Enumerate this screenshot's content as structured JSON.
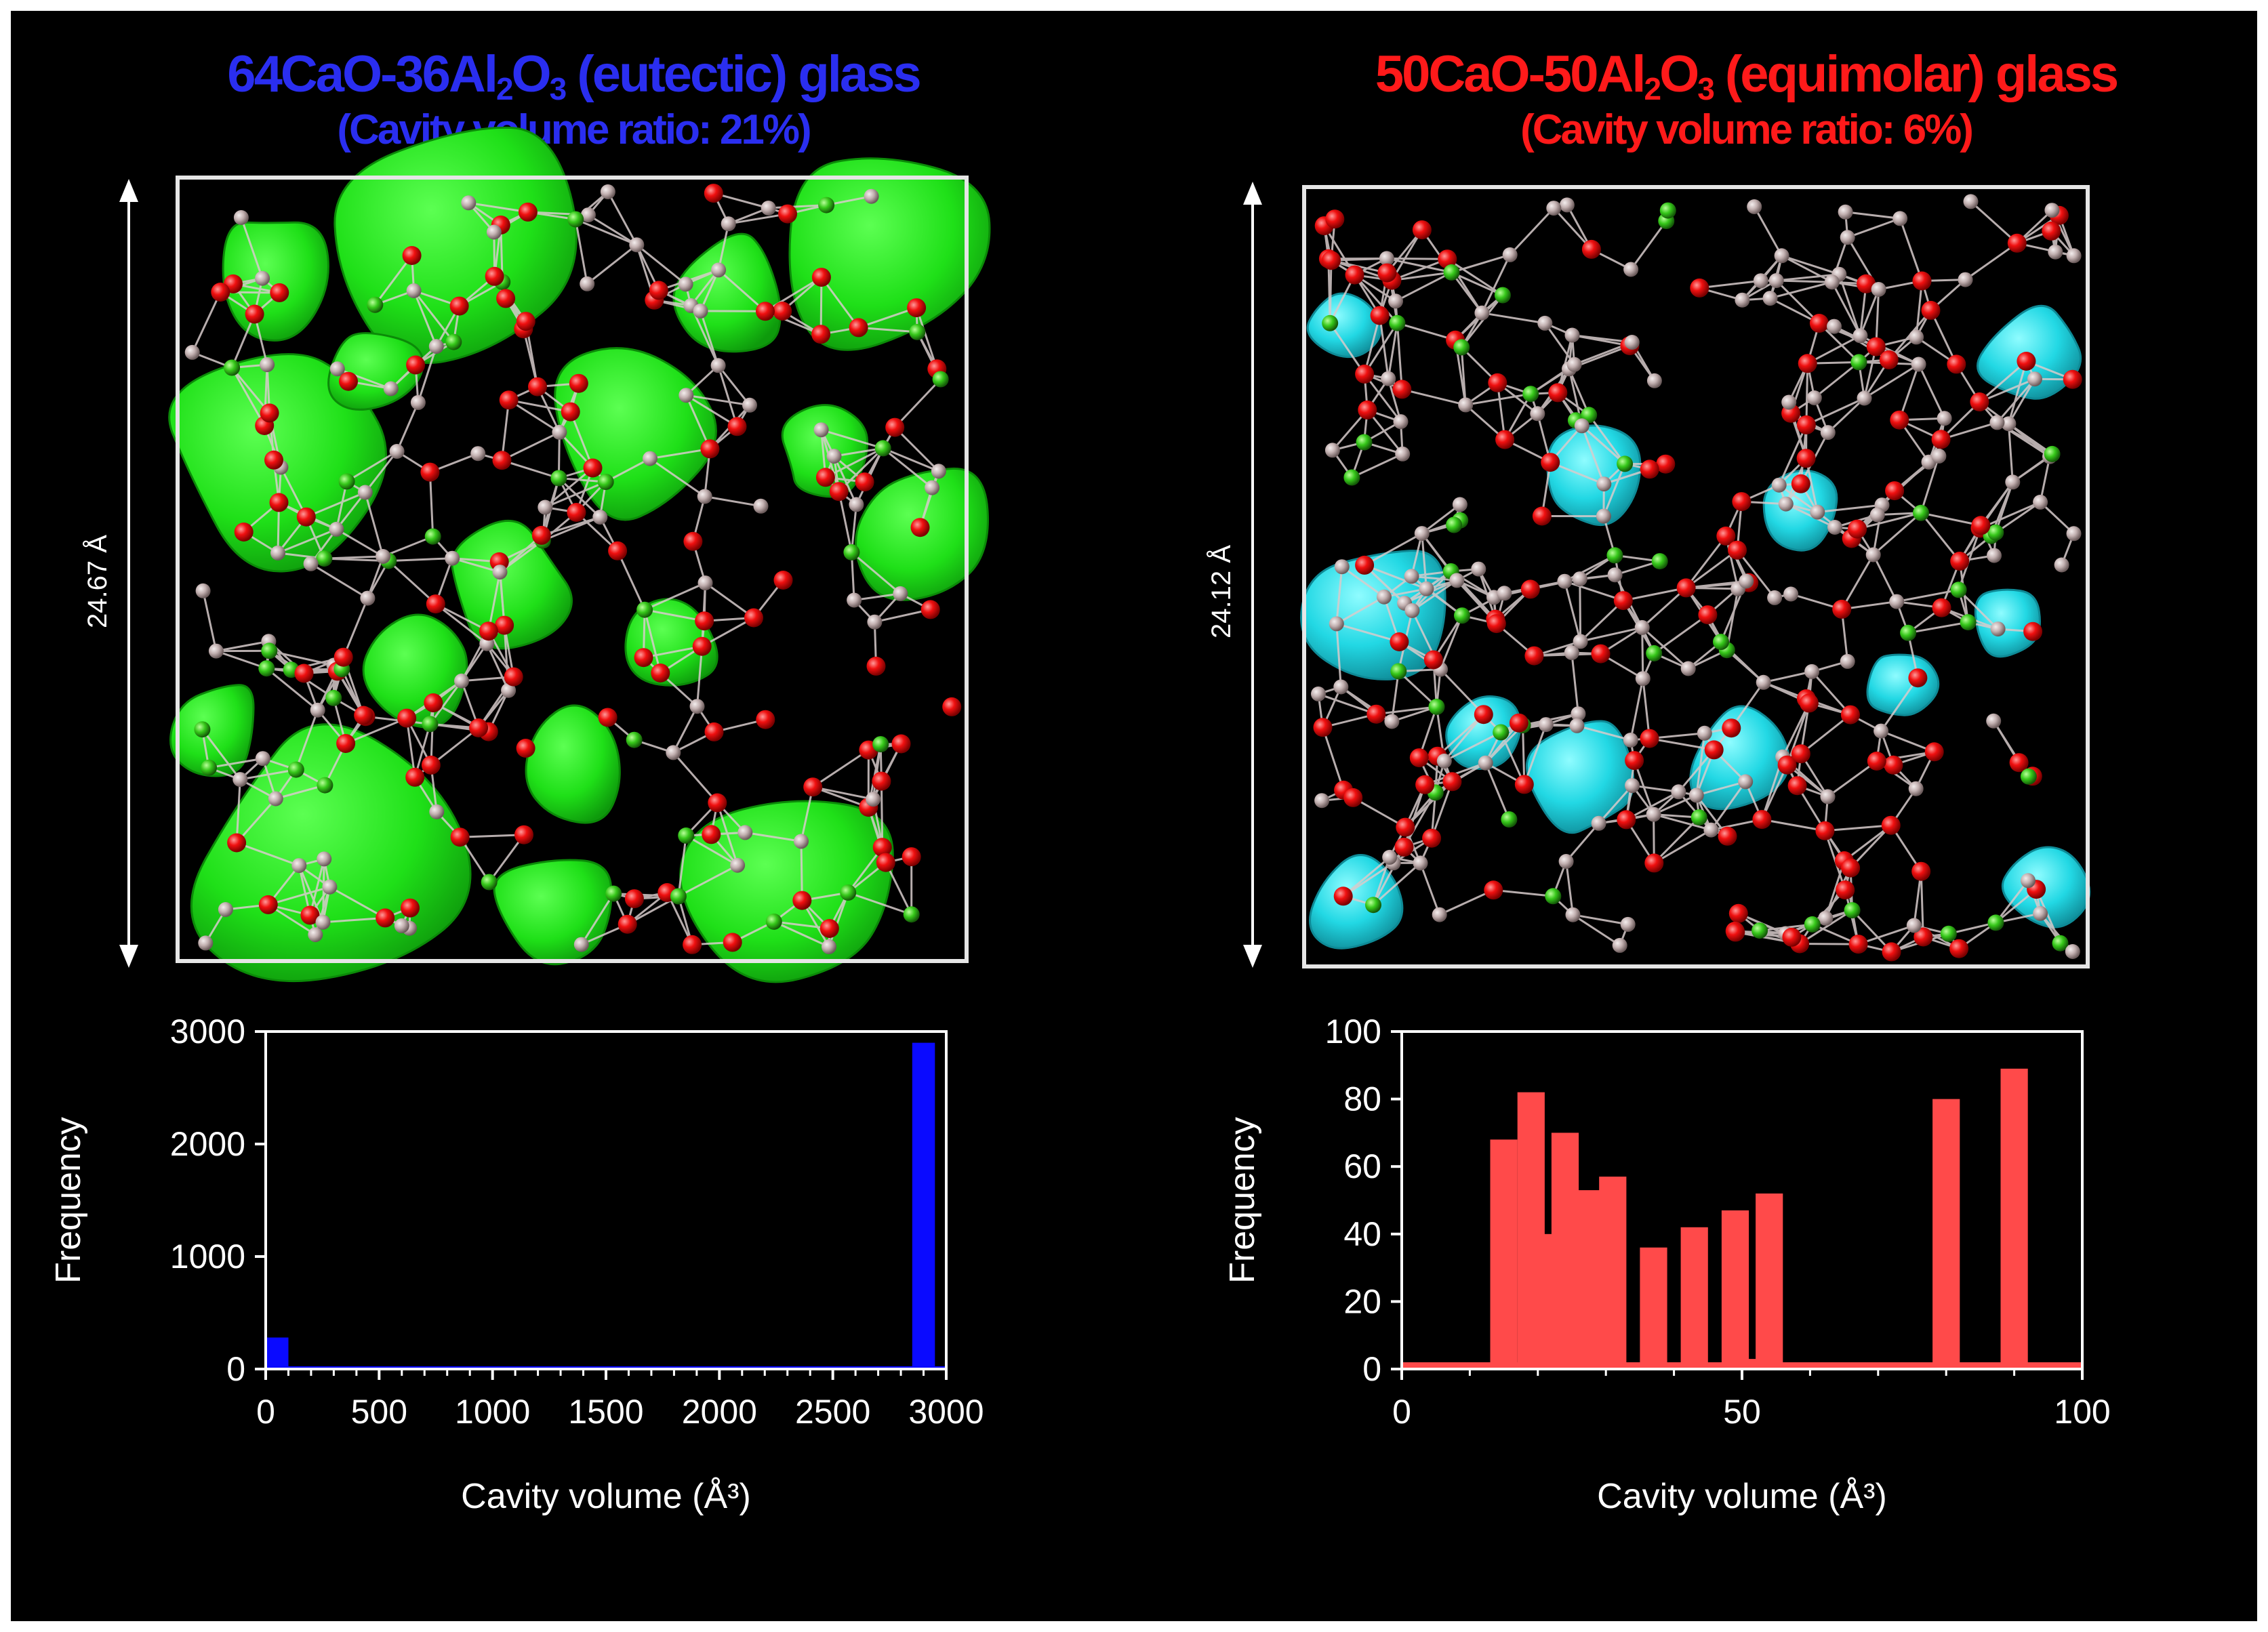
{
  "left": {
    "title_prefix": "64CaO-36Al",
    "title_sub1": "2",
    "title_mid": "O",
    "title_sub2": "3",
    "title_suffix": " (eutectic) glass",
    "subtitle": "(Cavity volume ratio: 21%)",
    "dimension_label": "24.67 Å",
    "colors": {
      "title": "#2a2ef0",
      "cavity": "#22e61c",
      "bars": "#0a0aff"
    }
  },
  "right": {
    "title_prefix": "50CaO-50Al",
    "title_sub1": "2",
    "title_mid": "O",
    "title_sub2": "3",
    "title_suffix": " (equimolar) glass",
    "subtitle": "(Cavity volume ratio: 6%)",
    "dimension_label": "24.12 Å",
    "colors": {
      "title": "#ff1a1a",
      "cavity": "#27dde6",
      "bars": "#ff4a4a"
    }
  },
  "chart_data": [
    {
      "type": "bar",
      "title": "64CaO-36Al2O3 (eutectic) glass",
      "xlabel": "Cavity volume (Å³)",
      "ylabel": "Frequency",
      "xlim": [
        0,
        3000
      ],
      "ylim": [
        0,
        3000
      ],
      "xticks": [
        0,
        500,
        1000,
        1500,
        2000,
        2500,
        3000
      ],
      "yticks": [
        0,
        1000,
        2000,
        3000
      ],
      "baseline": 25,
      "bin_width": 100,
      "bars": [
        {
          "x": 50,
          "value": 280
        },
        {
          "x": 2900,
          "value": 2900
        }
      ],
      "color": "#0a0aff"
    },
    {
      "type": "bar",
      "title": "50CaO-50Al2O3 (equimolar) glass",
      "xlabel": "Cavity volume (Å³)",
      "ylabel": "Frequency",
      "xlim": [
        0,
        100
      ],
      "ylim": [
        0,
        100
      ],
      "xticks": [
        0,
        50,
        100
      ],
      "yticks": [
        0,
        20,
        40,
        60,
        80,
        100
      ],
      "baseline": 2,
      "bin_width": 4,
      "bars": [
        {
          "x": 15,
          "value": 68
        },
        {
          "x": 19,
          "value": 82
        },
        {
          "x": 22,
          "value": 40
        },
        {
          "x": 24,
          "value": 70
        },
        {
          "x": 28,
          "value": 53
        },
        {
          "x": 31,
          "value": 57
        },
        {
          "x": 37,
          "value": 36
        },
        {
          "x": 43,
          "value": 42
        },
        {
          "x": 49,
          "value": 47
        },
        {
          "x": 53,
          "value": 3
        },
        {
          "x": 54,
          "value": 52
        },
        {
          "x": 80,
          "value": 80
        },
        {
          "x": 90,
          "value": 89
        }
      ],
      "color": "#ff4a4a"
    }
  ]
}
